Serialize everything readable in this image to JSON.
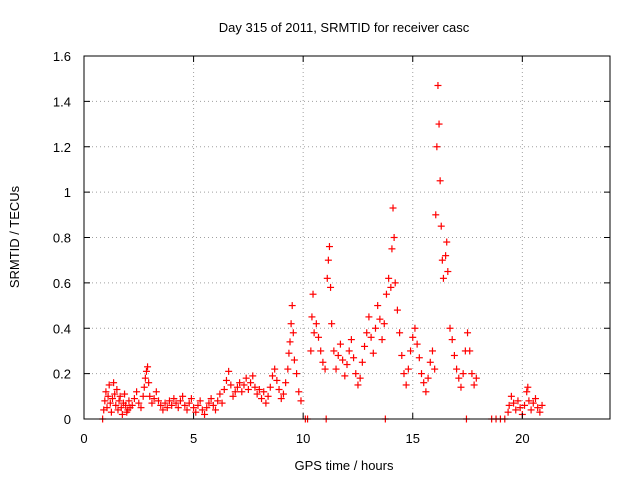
{
  "chart_data": {
    "type": "scatter",
    "title": "Day 315 of 2011, SRMTID for receiver casc",
    "xlabel": "GPS time / hours",
    "ylabel": "SRMTID / TECUs",
    "xlim": [
      0,
      24
    ],
    "ylim": [
      0,
      1.6
    ],
    "xticks": [
      0,
      5,
      10,
      15,
      20
    ],
    "yticks": [
      0,
      0.2,
      0.4,
      0.6,
      0.8,
      1,
      1.2,
      1.4,
      1.6
    ],
    "xtick_labels": [
      "0",
      "5",
      "10",
      "15",
      "20"
    ],
    "ytick_labels": [
      "0",
      "0.2",
      "0.4",
      "0.6",
      "0.8",
      "1",
      "1.2",
      "1.4",
      "1.6"
    ],
    "grid": true,
    "marker": "+",
    "colors": {
      "series": "#ff0000",
      "grid": "#a0a0a0",
      "axis": "#000000"
    },
    "series": [
      {
        "name": "SRMTID",
        "points": [
          [
            0.85,
            0.0
          ],
          [
            0.9,
            0.04
          ],
          [
            0.95,
            0.08
          ],
          [
            1.0,
            0.12
          ],
          [
            1.05,
            0.05
          ],
          [
            1.1,
            0.1
          ],
          [
            1.15,
            0.15
          ],
          [
            1.2,
            0.07
          ],
          [
            1.25,
            0.03
          ],
          [
            1.3,
            0.09
          ],
          [
            1.35,
            0.16
          ],
          [
            1.4,
            0.11
          ],
          [
            1.45,
            0.06
          ],
          [
            1.5,
            0.13
          ],
          [
            1.55,
            0.04
          ],
          [
            1.6,
            0.08
          ],
          [
            1.65,
            0.1
          ],
          [
            1.7,
            0.05
          ],
          [
            1.75,
            0.02
          ],
          [
            1.8,
            0.07
          ],
          [
            1.85,
            0.11
          ],
          [
            1.9,
            0.06
          ],
          [
            1.95,
            0.03
          ],
          [
            2.0,
            0.04
          ],
          [
            2.05,
            0.08
          ],
          [
            2.1,
            0.05
          ],
          [
            2.2,
            0.06
          ],
          [
            2.3,
            0.09
          ],
          [
            2.4,
            0.12
          ],
          [
            2.5,
            0.07
          ],
          [
            2.6,
            0.05
          ],
          [
            2.7,
            0.1
          ],
          [
            2.75,
            0.14
          ],
          [
            2.8,
            0.18
          ],
          [
            2.85,
            0.21
          ],
          [
            2.9,
            0.23
          ],
          [
            2.95,
            0.16
          ],
          [
            3.0,
            0.1
          ],
          [
            3.1,
            0.07
          ],
          [
            3.2,
            0.09
          ],
          [
            3.3,
            0.12
          ],
          [
            3.4,
            0.08
          ],
          [
            3.5,
            0.06
          ],
          [
            3.6,
            0.04
          ],
          [
            3.7,
            0.07
          ],
          [
            3.8,
            0.05
          ],
          [
            3.9,
            0.08
          ],
          [
            4.0,
            0.06
          ],
          [
            4.1,
            0.09
          ],
          [
            4.2,
            0.07
          ],
          [
            4.3,
            0.05
          ],
          [
            4.4,
            0.08
          ],
          [
            4.5,
            0.1
          ],
          [
            4.6,
            0.06
          ],
          [
            4.7,
            0.04
          ],
          [
            4.8,
            0.07
          ],
          [
            4.9,
            0.09
          ],
          [
            5.0,
            0.05
          ],
          [
            5.1,
            0.03
          ],
          [
            5.2,
            0.06
          ],
          [
            5.3,
            0.08
          ],
          [
            5.4,
            0.04
          ],
          [
            5.5,
            0.02
          ],
          [
            5.6,
            0.05
          ],
          [
            5.7,
            0.07
          ],
          [
            5.8,
            0.09
          ],
          [
            5.9,
            0.06
          ],
          [
            6.0,
            0.04
          ],
          [
            6.1,
            0.08
          ],
          [
            6.2,
            0.11
          ],
          [
            6.3,
            0.07
          ],
          [
            6.4,
            0.13
          ],
          [
            6.5,
            0.17
          ],
          [
            6.6,
            0.21
          ],
          [
            6.7,
            0.15
          ],
          [
            6.8,
            0.1
          ],
          [
            6.9,
            0.12
          ],
          [
            7.0,
            0.14
          ],
          [
            7.1,
            0.16
          ],
          [
            7.2,
            0.12
          ],
          [
            7.3,
            0.15
          ],
          [
            7.4,
            0.18
          ],
          [
            7.5,
            0.13
          ],
          [
            7.6,
            0.16
          ],
          [
            7.7,
            0.19
          ],
          [
            7.8,
            0.14
          ],
          [
            7.9,
            0.11
          ],
          [
            8.0,
            0.13
          ],
          [
            8.1,
            0.09
          ],
          [
            8.2,
            0.12
          ],
          [
            8.3,
            0.07
          ],
          [
            8.4,
            0.1
          ],
          [
            8.5,
            0.14
          ],
          [
            8.6,
            0.19
          ],
          [
            8.7,
            0.22
          ],
          [
            8.8,
            0.17
          ],
          [
            8.9,
            0.13
          ],
          [
            9.0,
            0.09
          ],
          [
            9.1,
            0.11
          ],
          [
            9.2,
            0.16
          ],
          [
            9.3,
            0.22
          ],
          [
            9.35,
            0.29
          ],
          [
            9.4,
            0.34
          ],
          [
            9.45,
            0.42
          ],
          [
            9.5,
            0.5
          ],
          [
            9.55,
            0.38
          ],
          [
            9.6,
            0.26
          ],
          [
            9.7,
            0.2
          ],
          [
            9.8,
            0.12
          ],
          [
            9.9,
            0.08
          ],
          [
            10.1,
            0.0
          ],
          [
            10.2,
            0.0
          ],
          [
            10.35,
            0.3
          ],
          [
            10.4,
            0.45
          ],
          [
            10.45,
            0.55
          ],
          [
            10.5,
            0.38
          ],
          [
            10.6,
            0.42
          ],
          [
            10.7,
            0.36
          ],
          [
            10.8,
            0.3
          ],
          [
            10.9,
            0.25
          ],
          [
            11.0,
            0.22
          ],
          [
            11.05,
            0.0
          ],
          [
            11.1,
            0.62
          ],
          [
            11.15,
            0.7
          ],
          [
            11.2,
            0.76
          ],
          [
            11.25,
            0.58
          ],
          [
            11.3,
            0.42
          ],
          [
            11.4,
            0.3
          ],
          [
            11.5,
            0.22
          ],
          [
            11.6,
            0.28
          ],
          [
            11.7,
            0.33
          ],
          [
            11.8,
            0.26
          ],
          [
            11.9,
            0.19
          ],
          [
            12.0,
            0.24
          ],
          [
            12.1,
            0.3
          ],
          [
            12.2,
            0.35
          ],
          [
            12.3,
            0.27
          ],
          [
            12.4,
            0.2
          ],
          [
            12.5,
            0.15
          ],
          [
            12.6,
            0.18
          ],
          [
            12.7,
            0.25
          ],
          [
            12.8,
            0.32
          ],
          [
            12.9,
            0.38
          ],
          [
            13.0,
            0.45
          ],
          [
            13.1,
            0.36
          ],
          [
            13.2,
            0.29
          ],
          [
            13.3,
            0.4
          ],
          [
            13.4,
            0.5
          ],
          [
            13.5,
            0.44
          ],
          [
            13.6,
            0.35
          ],
          [
            13.7,
            0.42
          ],
          [
            13.75,
            0.0
          ],
          [
            13.8,
            0.55
          ],
          [
            13.9,
            0.62
          ],
          [
            14.0,
            0.58
          ],
          [
            14.05,
            0.75
          ],
          [
            14.1,
            0.93
          ],
          [
            14.15,
            0.8
          ],
          [
            14.2,
            0.6
          ],
          [
            14.3,
            0.48
          ],
          [
            14.4,
            0.38
          ],
          [
            14.5,
            0.28
          ],
          [
            14.6,
            0.2
          ],
          [
            14.7,
            0.15
          ],
          [
            14.8,
            0.22
          ],
          [
            14.9,
            0.3
          ],
          [
            15.0,
            0.36
          ],
          [
            15.1,
            0.4
          ],
          [
            15.2,
            0.33
          ],
          [
            15.3,
            0.27
          ],
          [
            15.4,
            0.2
          ],
          [
            15.5,
            0.16
          ],
          [
            15.6,
            0.12
          ],
          [
            15.7,
            0.18
          ],
          [
            15.8,
            0.25
          ],
          [
            15.9,
            0.3
          ],
          [
            16.0,
            0.22
          ],
          [
            16.05,
            0.9
          ],
          [
            16.1,
            1.2
          ],
          [
            16.15,
            1.47
          ],
          [
            16.2,
            1.3
          ],
          [
            16.25,
            1.05
          ],
          [
            16.3,
            0.85
          ],
          [
            16.35,
            0.7
          ],
          [
            16.4,
            0.62
          ],
          [
            16.5,
            0.72
          ],
          [
            16.55,
            0.78
          ],
          [
            16.6,
            0.65
          ],
          [
            16.7,
            0.4
          ],
          [
            16.8,
            0.35
          ],
          [
            16.9,
            0.28
          ],
          [
            17.0,
            0.22
          ],
          [
            17.1,
            0.18
          ],
          [
            17.2,
            0.14
          ],
          [
            17.3,
            0.2
          ],
          [
            17.4,
            0.3
          ],
          [
            17.45,
            0.0
          ],
          [
            17.5,
            0.38
          ],
          [
            17.6,
            0.3
          ],
          [
            17.7,
            0.2
          ],
          [
            17.8,
            0.15
          ],
          [
            17.9,
            0.18
          ],
          [
            18.6,
            0.0
          ],
          [
            18.8,
            0.0
          ],
          [
            19.0,
            0.0
          ],
          [
            19.2,
            0.0
          ],
          [
            19.35,
            0.03
          ],
          [
            19.4,
            0.06
          ],
          [
            19.5,
            0.1
          ],
          [
            19.6,
            0.07
          ],
          [
            19.7,
            0.04
          ],
          [
            19.8,
            0.08
          ],
          [
            19.9,
            0.05
          ],
          [
            20.0,
            0.02
          ],
          [
            20.1,
            0.06
          ],
          [
            20.2,
            0.12
          ],
          [
            20.25,
            0.14
          ],
          [
            20.3,
            0.08
          ],
          [
            20.4,
            0.04
          ],
          [
            20.5,
            0.07
          ],
          [
            20.6,
            0.09
          ],
          [
            20.7,
            0.05
          ],
          [
            20.8,
            0.03
          ],
          [
            20.9,
            0.06
          ]
        ]
      }
    ]
  }
}
